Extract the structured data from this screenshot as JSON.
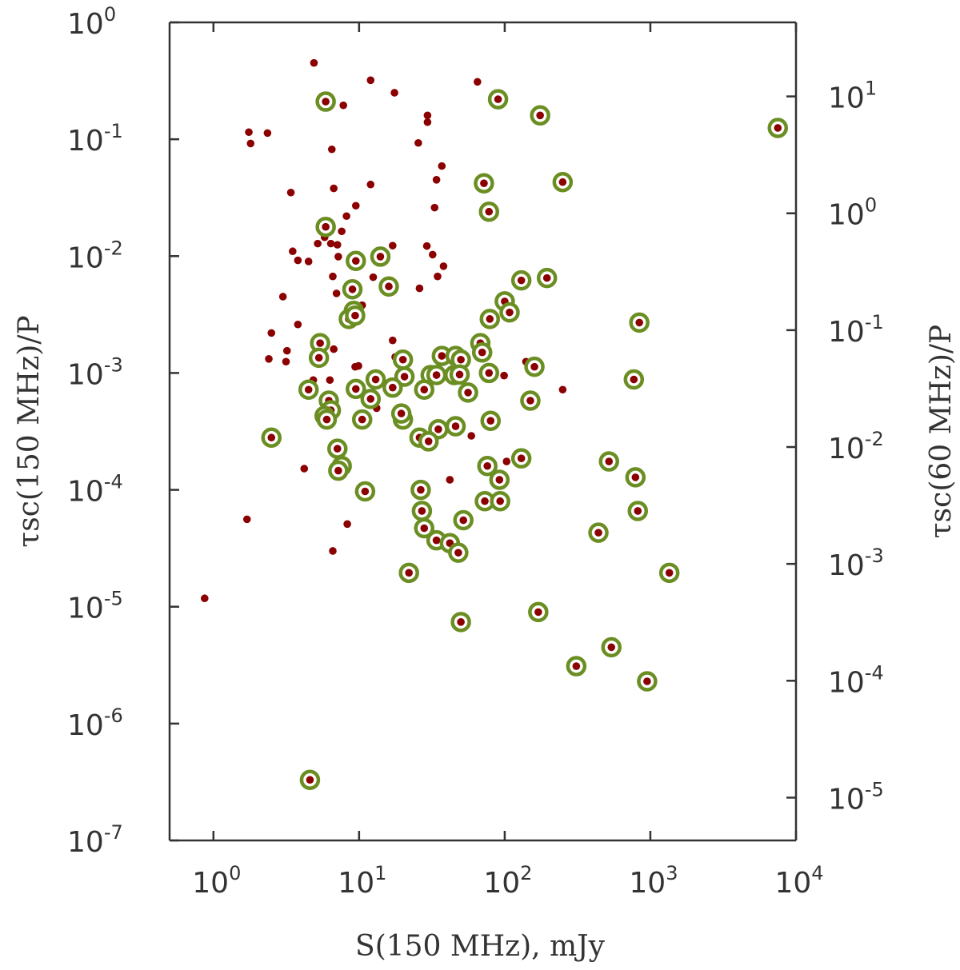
{
  "chart_data": {
    "type": "scatter",
    "xlabel": "S(150 MHz), mJy",
    "ylabel": "τsc(150 MHz)/P",
    "ylabel_right": "τsc(60 MHz)/P",
    "xscale": "log",
    "yscale": "log",
    "xlim": [
      0.5,
      10000
    ],
    "ylim": [
      1e-07,
      1
    ],
    "ylim_right": [
      4.3e-06,
      43
    ],
    "x_ticks": [
      {
        "value": 1,
        "base": "10",
        "exp": "0"
      },
      {
        "value": 10,
        "base": "10",
        "exp": "1"
      },
      {
        "value": 100,
        "base": "10",
        "exp": "2"
      },
      {
        "value": 1000,
        "base": "10",
        "exp": "3"
      },
      {
        "value": 10000,
        "base": "10",
        "exp": "4"
      }
    ],
    "y_ticks": [
      {
        "value": 1,
        "base": "10",
        "exp": "0"
      },
      {
        "value": 0.1,
        "base": "10",
        "exp": "-1"
      },
      {
        "value": 0.01,
        "base": "10",
        "exp": "-2"
      },
      {
        "value": 0.001,
        "base": "10",
        "exp": "-3"
      },
      {
        "value": 0.0001,
        "base": "10",
        "exp": "-4"
      },
      {
        "value": 1e-05,
        "base": "10",
        "exp": "-5"
      },
      {
        "value": 1e-06,
        "base": "10",
        "exp": "-6"
      },
      {
        "value": 1e-07,
        "base": "10",
        "exp": "-7"
      }
    ],
    "y_ticks_right": [
      {
        "value": 10,
        "base": "10",
        "exp": "1"
      },
      {
        "value": 1,
        "base": "10",
        "exp": "0"
      },
      {
        "value": 0.1,
        "base": "10",
        "exp": "-1"
      },
      {
        "value": 0.01,
        "base": "10",
        "exp": "-2"
      },
      {
        "value": 0.001,
        "base": "10",
        "exp": "-3"
      },
      {
        "value": 0.0001,
        "base": "10",
        "exp": "-4"
      },
      {
        "value": 1e-05,
        "base": "10",
        "exp": "-5"
      }
    ],
    "grid": false,
    "colors": {
      "point": "#8b0000",
      "ring": "#6b8e23",
      "axis": "#333333"
    },
    "series": [
      {
        "marker": "dot",
        "points": [
          [
            4.9,
            0.45
          ],
          [
            12,
            0.32
          ],
          [
            17.5,
            0.25
          ],
          [
            65,
            0.31
          ],
          [
            7.8,
            0.195
          ],
          [
            1.75,
            0.115
          ],
          [
            2.35,
            0.113
          ],
          [
            1.8,
            0.092
          ],
          [
            6.5,
            0.082
          ],
          [
            29.5,
            0.16
          ],
          [
            29.5,
            0.14
          ],
          [
            25.5,
            0.093
          ],
          [
            37,
            0.059
          ],
          [
            34,
            0.045
          ],
          [
            12,
            0.041
          ],
          [
            6.7,
            0.038
          ],
          [
            3.4,
            0.035
          ],
          [
            33,
            0.026
          ],
          [
            9.5,
            0.027
          ],
          [
            8.2,
            0.022
          ],
          [
            6,
            0.0158
          ],
          [
            7.6,
            0.0163
          ],
          [
            5.8,
            0.0145
          ],
          [
            5.2,
            0.0128
          ],
          [
            6.4,
            0.0128
          ],
          [
            7.1,
            0.0125
          ],
          [
            17,
            0.0123
          ],
          [
            29.2,
            0.0122
          ],
          [
            3.5,
            0.011
          ],
          [
            4.5,
            0.009
          ],
          [
            3.8,
            0.0092
          ],
          [
            7.2,
            0.0099
          ],
          [
            32,
            0.0103
          ],
          [
            38,
            0.0082
          ],
          [
            34.6,
            0.0067
          ],
          [
            6.6,
            0.0067
          ],
          [
            12.5,
            0.0066
          ],
          [
            7,
            0.0048
          ],
          [
            26,
            0.0053
          ],
          [
            3,
            0.0045
          ],
          [
            10.5,
            0.0038
          ],
          [
            3.8,
            0.0026
          ],
          [
            2.5,
            0.0022
          ],
          [
            17,
            0.0019
          ],
          [
            6.7,
            0.0016
          ],
          [
            3.2,
            0.00155
          ],
          [
            2.4,
            0.00132
          ],
          [
            3.15,
            0.00125
          ],
          [
            9.9,
            0.00115
          ],
          [
            9.4,
            0.00113
          ],
          [
            17.7,
            0.00137
          ],
          [
            48,
            0.00125
          ],
          [
            50,
            0.00112
          ],
          [
            140,
            0.00125
          ],
          [
            99,
            0.00095
          ],
          [
            6.3,
            0.00087
          ],
          [
            4.85,
            0.00087
          ],
          [
            13.2,
            0.0005
          ],
          [
            5.9,
            0.00048
          ],
          [
            6.3,
            0.00052
          ],
          [
            7,
            0.0005
          ],
          [
            19,
            0.00045
          ],
          [
            34.5,
            0.00037
          ],
          [
            59,
            0.00029
          ],
          [
            250,
            0.00072
          ],
          [
            103,
            0.000175
          ],
          [
            7.5,
            0.000152
          ],
          [
            4.2,
            0.000152
          ],
          [
            42,
            0.000122
          ],
          [
            1.7,
            5.6e-05
          ],
          [
            8.3,
            5.1e-05
          ],
          [
            6.6,
            3e-05
          ],
          [
            43,
            3.5e-05
          ],
          [
            0.87,
            1.18e-05
          ]
        ]
      },
      {
        "marker": "ringed-dot",
        "points": [
          [
            5.9,
            0.21
          ],
          [
            90,
            0.22
          ],
          [
            175,
            0.16
          ],
          [
            7500,
            0.125
          ],
          [
            72,
            0.042
          ],
          [
            250,
            0.043
          ],
          [
            78,
            0.024
          ],
          [
            5.9,
            0.0178
          ],
          [
            9.5,
            0.0091
          ],
          [
            14,
            0.0099
          ],
          [
            9,
            0.0052
          ],
          [
            16,
            0.0055
          ],
          [
            130,
            0.0062
          ],
          [
            195,
            0.0065
          ],
          [
            100,
            0.0041
          ],
          [
            108,
            0.0033
          ],
          [
            9.2,
            0.0034
          ],
          [
            8.5,
            0.0029
          ],
          [
            9.4,
            0.0031
          ],
          [
            79,
            0.0029
          ],
          [
            840,
            0.0027
          ],
          [
            5.4,
            0.0018
          ],
          [
            5.3,
            0.00135
          ],
          [
            37,
            0.0014
          ],
          [
            46,
            0.0014
          ],
          [
            50,
            0.0013
          ],
          [
            68,
            0.0018
          ],
          [
            70,
            0.0015
          ],
          [
            20,
            0.0013
          ],
          [
            160,
            0.00113
          ],
          [
            78,
            0.001
          ],
          [
            13,
            0.00088
          ],
          [
            20.5,
            0.00093
          ],
          [
            31,
            0.00096
          ],
          [
            34,
            0.00096
          ],
          [
            45,
            0.00096
          ],
          [
            49,
            0.00097
          ],
          [
            770,
            0.00088
          ],
          [
            4.5,
            0.00072
          ],
          [
            9.5,
            0.00073
          ],
          [
            17,
            0.00075
          ],
          [
            28,
            0.00072
          ],
          [
            56,
            0.00068
          ],
          [
            12,
            0.0006
          ],
          [
            6.2,
            0.00058
          ],
          [
            6.4,
            0.00048
          ],
          [
            5.8,
            0.00043
          ],
          [
            6,
            0.0004
          ],
          [
            10.5,
            0.0004
          ],
          [
            20,
            0.0004
          ],
          [
            80,
            0.00039
          ],
          [
            150,
            0.00058
          ],
          [
            19.5,
            0.00045
          ],
          [
            35,
            0.00033
          ],
          [
            46,
            0.00035
          ],
          [
            26,
            0.00028
          ],
          [
            30,
            0.00026
          ],
          [
            2.5,
            0.00028
          ],
          [
            7.1,
            0.000225
          ],
          [
            7.6,
            0.00016
          ],
          [
            7.2,
            0.000146
          ],
          [
            76,
            0.00016
          ],
          [
            92,
            0.000122
          ],
          [
            130,
            0.000186
          ],
          [
            520,
            0.000175
          ],
          [
            790,
            0.000128
          ],
          [
            11,
            9.7e-05
          ],
          [
            26.5,
            0.0001
          ],
          [
            73,
            8e-05
          ],
          [
            93,
            8e-05
          ],
          [
            27,
            6.6e-05
          ],
          [
            52,
            5.5e-05
          ],
          [
            820,
            6.6e-05
          ],
          [
            28,
            4.7e-05
          ],
          [
            34,
            3.7e-05
          ],
          [
            42,
            3.5e-05
          ],
          [
            48,
            2.9e-05
          ],
          [
            440,
            4.3e-05
          ],
          [
            22,
            1.95e-05
          ],
          [
            1350,
            1.95e-05
          ],
          [
            50,
            7.4e-06
          ],
          [
            170,
            9e-06
          ],
          [
            310,
            3.1e-06
          ],
          [
            540,
            4.5e-06
          ],
          [
            950,
            2.3e-06
          ],
          [
            4.6,
            3.3e-07
          ]
        ]
      }
    ]
  }
}
